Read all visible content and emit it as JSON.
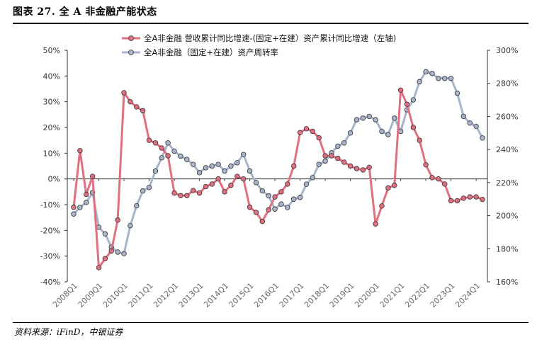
{
  "figure": {
    "title": "图表 27. 全 A 非金融产能状态",
    "source": "资料来源：iFinD，中银证券"
  },
  "chart_data": {
    "type": "line",
    "x": [
      "2008Q1",
      "2008Q2",
      "2008Q3",
      "2008Q4",
      "2009Q1",
      "2009Q2",
      "2009Q3",
      "2009Q4",
      "2010Q1",
      "2010Q2",
      "2010Q3",
      "2010Q4",
      "2011Q1",
      "2011Q2",
      "2011Q3",
      "2011Q4",
      "2012Q1",
      "2012Q2",
      "2012Q3",
      "2012Q4",
      "2013Q1",
      "2013Q2",
      "2013Q3",
      "2013Q4",
      "2014Q1",
      "2014Q2",
      "2014Q3",
      "2014Q4",
      "2015Q1",
      "2015Q2",
      "2015Q3",
      "2015Q4",
      "2016Q1",
      "2016Q2",
      "2016Q3",
      "2016Q4",
      "2017Q1",
      "2017Q2",
      "2017Q3",
      "2017Q4",
      "2018Q1",
      "2018Q2",
      "2018Q3",
      "2018Q4",
      "2019Q1",
      "2019Q2",
      "2019Q3",
      "2019Q4",
      "2020Q1",
      "2020Q2",
      "2020Q3",
      "2020Q4",
      "2021Q1",
      "2021Q2",
      "2021Q3",
      "2021Q4",
      "2022Q1",
      "2022Q2",
      "2022Q3",
      "2022Q4",
      "2023Q1",
      "2023Q2",
      "2023Q3",
      "2023Q4",
      "2024Q1",
      "2024Q2"
    ],
    "x_tick_labels": [
      "2008Q1",
      "2009Q1",
      "2010Q1",
      "2011Q1",
      "2012Q1",
      "2013Q1",
      "2014Q1",
      "2015Q1",
      "2016Q1",
      "2017Q1",
      "2018Q1",
      "2019Q1",
      "2020Q1",
      "2021Q1",
      "2022Q1",
      "2023Q1",
      "2024Q1"
    ],
    "series": [
      {
        "name": "全A非金融 营收累计同比增速-(固定+在建）资产累计同比增速（左轴)",
        "axis": "left",
        "color": "#e07080",
        "values": [
          -11,
          11,
          -6,
          1,
          -34.5,
          -31,
          -28,
          -16,
          33.5,
          30,
          28,
          26.5,
          15,
          14,
          12,
          9,
          -5.5,
          -6.5,
          -6.5,
          -4.5,
          -5.5,
          -3,
          -2,
          0,
          -5,
          -2.5,
          1,
          0,
          -11,
          -13,
          -16.5,
          -12,
          -7,
          -5,
          -2,
          5,
          18,
          19.5,
          18.5,
          16,
          9,
          9,
          8,
          6.5,
          5,
          4,
          3.5,
          4.5,
          -17.5,
          -10.5,
          -3.5,
          -2.5,
          34.5,
          29,
          20,
          15,
          5.5,
          0.5,
          0,
          -2,
          -8.5,
          -8.5,
          -7.5,
          -7,
          -7,
          -8
        ]
      },
      {
        "name": "全A非金融（固定+在建）资产周转率",
        "axis": "right",
        "color": "#a8b4cc",
        "values": [
          201,
          205,
          208,
          214,
          193,
          189,
          181,
          178,
          177,
          194,
          206,
          215,
          217,
          227,
          235,
          244,
          239,
          236,
          234,
          231,
          226,
          229,
          230,
          231,
          227,
          230,
          232,
          237,
          227,
          220,
          215,
          212,
          204,
          207,
          205,
          210,
          211,
          219,
          223,
          231,
          233,
          238,
          242,
          244,
          250,
          258,
          259,
          260,
          258,
          251,
          249,
          259,
          251,
          264,
          270,
          281,
          287,
          286,
          283,
          283,
          283,
          274,
          260,
          256,
          254,
          247
        ]
      }
    ],
    "y_left": {
      "min": -40,
      "max": 50,
      "step": 10,
      "tick_labels": [
        "-40%",
        "-30%",
        "-20%",
        "-10%",
        "0%",
        "10%",
        "20%",
        "30%",
        "40%",
        "50%"
      ]
    },
    "y_right": {
      "min": 160,
      "max": 300,
      "step": 20,
      "tick_labels": [
        "160%",
        "180%",
        "200%",
        "220%",
        "240%",
        "260%",
        "280%",
        "300%"
      ]
    },
    "grid": false,
    "legend_position": "top-center",
    "marker": "circle"
  }
}
